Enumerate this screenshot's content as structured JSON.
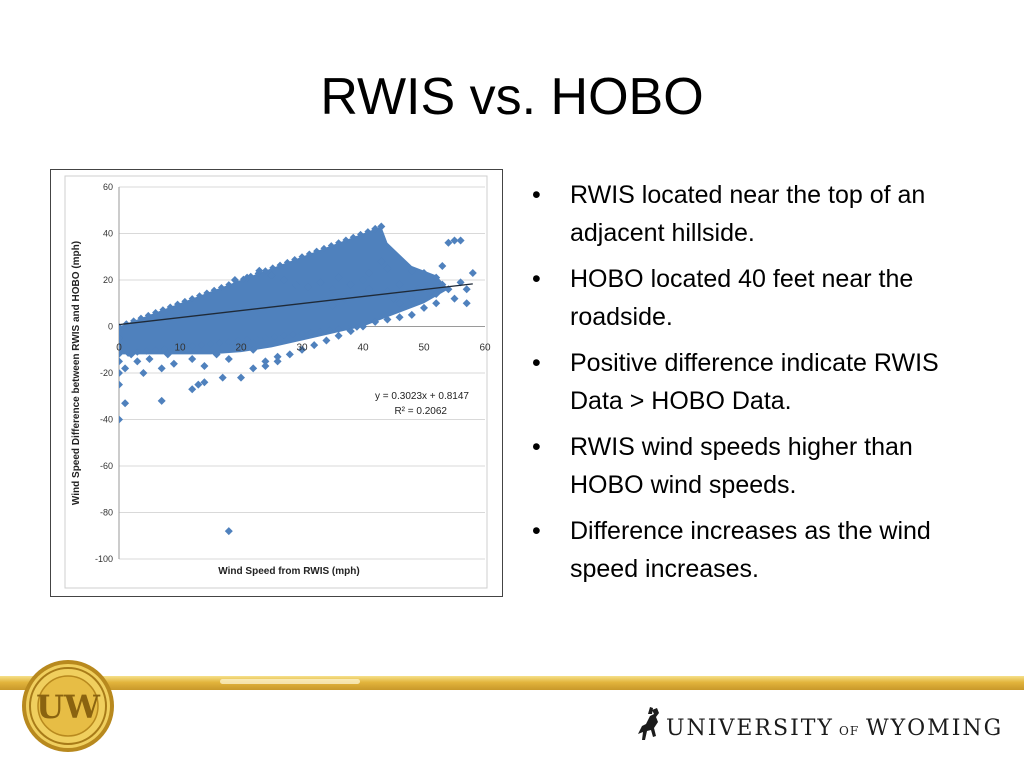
{
  "slide": {
    "title": "RWIS vs. HOBO",
    "bullets": [
      "RWIS located near the top of an adjacent hillside.",
      "HOBO located 40 feet near the roadside.",
      "Positive difference indicate RWIS Data > HOBO Data.",
      "RWIS wind speeds higher than HOBO wind speeds.",
      "Difference increases as the wind speed increases."
    ],
    "bullet_glyph": "•"
  },
  "logo": {
    "university_text": "UNIVERSITY",
    "of_text": "OF",
    "wyoming_text": "WYOMING",
    "seal_letters": "UW",
    "icon": "bucking-horse-rider-icon"
  },
  "colors": {
    "marker": "#4f81bd",
    "trendline": "#1f2a38",
    "gold": "#d4a82e"
  },
  "chart_data": {
    "type": "scatter",
    "title": "",
    "xlabel": "Wind Speed from RWIS (mph)",
    "ylabel": "Wind Speed Difference between RWIS and HOBO (mph)",
    "xlim": [
      0,
      60
    ],
    "ylim": [
      -100,
      60
    ],
    "x_ticks": [
      "0",
      "10",
      "20",
      "30",
      "40",
      "50",
      "60"
    ],
    "y_ticks": [
      "60",
      "40",
      "20",
      "0",
      "-20",
      "-40",
      "-60",
      "-80",
      "-100"
    ],
    "grid": "horizontal",
    "legend": "none",
    "trendline": {
      "slope": 0.3023,
      "intercept": 0.8147,
      "x_range": [
        0,
        58
      ],
      "equation": "y = 0.3023x + 0.8147",
      "r_squared": "R² = 0.2062"
    },
    "series": [
      {
        "marker": "diamond",
        "dense_region": {
          "description_upper_edge_slope": 1.0,
          "x_range": [
            0,
            43
          ]
        },
        "points": [
          [
            0,
            -5
          ],
          [
            0,
            -10
          ],
          [
            0,
            -15
          ],
          [
            0,
            -20
          ],
          [
            0,
            -25
          ],
          [
            1,
            -33
          ],
          [
            0,
            -40
          ],
          [
            1,
            -18
          ],
          [
            2,
            -12
          ],
          [
            3,
            -15
          ],
          [
            4,
            -20
          ],
          [
            5,
            -14
          ],
          [
            7,
            -18
          ],
          [
            8,
            -12
          ],
          [
            9,
            -16
          ],
          [
            12,
            -14
          ],
          [
            14,
            -17
          ],
          [
            7,
            -32
          ],
          [
            12,
            -27
          ],
          [
            13,
            -25
          ],
          [
            14,
            -24
          ],
          [
            17,
            -22
          ],
          [
            20,
            -22
          ],
          [
            22,
            -18
          ],
          [
            24,
            -17
          ],
          [
            26,
            -15
          ],
          [
            28,
            -12
          ],
          [
            30,
            -10
          ],
          [
            32,
            -8
          ],
          [
            34,
            -6
          ],
          [
            36,
            -4
          ],
          [
            38,
            -2
          ],
          [
            40,
            0
          ],
          [
            42,
            2
          ],
          [
            44,
            3
          ],
          [
            46,
            4
          ],
          [
            48,
            5
          ],
          [
            50,
            8
          ],
          [
            52,
            10
          ],
          [
            55,
            12
          ],
          [
            57,
            10
          ],
          [
            58,
            23
          ],
          [
            55,
            37
          ],
          [
            56,
            37
          ],
          [
            54,
            36
          ],
          [
            53,
            26
          ],
          [
            52,
            21
          ],
          [
            50,
            23
          ],
          [
            48,
            24
          ],
          [
            46,
            18
          ],
          [
            44,
            25
          ],
          [
            43,
            28
          ],
          [
            41,
            23
          ],
          [
            42,
            42
          ],
          [
            43,
            43
          ],
          [
            40,
            20
          ],
          [
            38,
            18
          ],
          [
            36,
            21
          ],
          [
            35,
            16
          ],
          [
            33,
            19
          ],
          [
            31,
            17
          ],
          [
            29,
            18
          ],
          [
            27,
            20
          ],
          [
            25,
            22
          ],
          [
            23,
            24
          ],
          [
            21,
            21
          ],
          [
            19,
            20
          ],
          [
            18,
            -88
          ],
          [
            26,
            -13
          ],
          [
            24,
            -15
          ],
          [
            22,
            -10
          ],
          [
            18,
            -14
          ],
          [
            16,
            -12
          ],
          [
            45,
            12
          ],
          [
            47,
            14
          ],
          [
            49,
            16
          ],
          [
            51,
            15
          ],
          [
            53,
            18
          ],
          [
            56,
            19
          ],
          [
            57,
            16
          ],
          [
            44,
            15
          ],
          [
            46,
            10
          ],
          [
            48,
            12
          ],
          [
            50,
            17
          ],
          [
            52,
            14
          ],
          [
            54,
            16
          ],
          [
            39,
            14
          ],
          [
            41,
            16
          ],
          [
            37,
            12
          ],
          [
            35,
            9
          ]
        ]
      }
    ],
    "annotations": [
      "y = 0.3023x + 0.8147",
      "R² = 0.2062"
    ]
  }
}
